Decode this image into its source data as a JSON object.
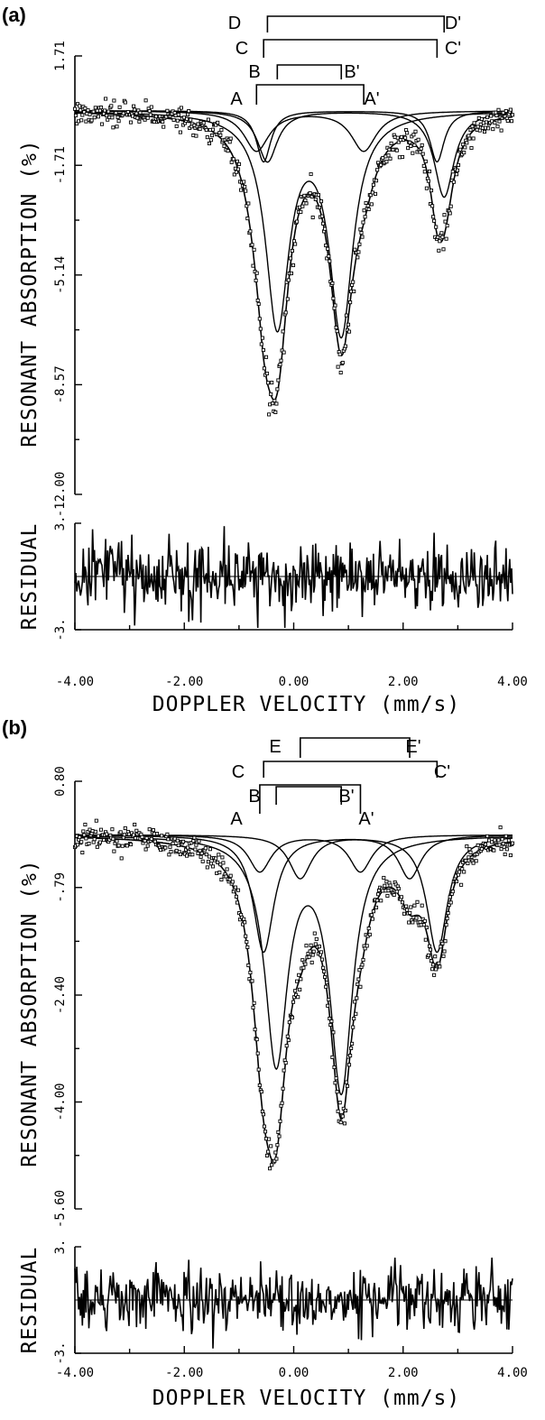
{
  "chart_data": [
    {
      "panel": "(a)",
      "type": "line",
      "xlabel": "DOPPLER VELOCITY (mm/s)",
      "ylabel": "RESONANT ABSORPTION (%)",
      "xlim": [
        -4.0,
        4.0
      ],
      "ylim": [
        -12.0,
        1.71
      ],
      "x_tick_labels": [
        "-4.00",
        "-2.00",
        "0.00",
        "2.00",
        "4.00"
      ],
      "y_tick_labels": [
        "1.71",
        "-1.71",
        "-5.14",
        "-8.57",
        "-12.00"
      ],
      "y_ticks": [
        1.71,
        -1.71,
        -5.14,
        -8.57,
        -12.0
      ],
      "baseline": 0,
      "components": [
        {
          "name": "A",
          "line1": -0.68,
          "line2": 1.28,
          "depths": [
            1.25,
            1.25
          ],
          "width": 0.28
        },
        {
          "name": "B",
          "line1": -0.3,
          "line2": 0.87,
          "depths": [
            6.6,
            6.8
          ],
          "width": 0.26
        },
        {
          "name": "C",
          "line1": -0.55,
          "line2": 2.62,
          "depths": [
            1.6,
            1.6
          ],
          "width": 0.16
        },
        {
          "name": "D",
          "line1": -0.48,
          "line2": 2.75,
          "depths": [
            1.6,
            2.7
          ],
          "width": 0.22
        }
      ],
      "doublet_labels": [
        {
          "left": "A",
          "right": "A'"
        },
        {
          "left": "B",
          "right": "B'"
        },
        {
          "left": "C",
          "right": "C'"
        },
        {
          "left": "D",
          "right": "D'"
        }
      ],
      "residual": {
        "ylabel": "RESIDUAL",
        "ylim": [
          -3.0,
          3.0
        ],
        "y_tick_labels": [
          "3.",
          "-3."
        ]
      }
    },
    {
      "panel": "(b)",
      "type": "line",
      "xlabel": "DOPPLER VELOCITY (mm/s)",
      "ylabel": "RESONANT ABSORPTION (%)",
      "xlim": [
        -4.0,
        4.0
      ],
      "ylim": [
        -5.6,
        0.8
      ],
      "x_tick_labels": [
        "-4.00",
        "-2.00",
        "0.00",
        "2.00",
        "4.00"
      ],
      "y_tick_labels": [
        "0.80",
        "-.79",
        "-2.40",
        "-4.00",
        "-5.60"
      ],
      "y_ticks": [
        0.8,
        -0.79,
        -2.4,
        -4.0,
        -5.6
      ],
      "baseline": 0,
      "components": [
        {
          "name": "A",
          "line1": -0.62,
          "line2": 1.22,
          "depths": [
            0.55,
            0.55
          ],
          "width": 0.25
        },
        {
          "name": "B",
          "line1": -0.32,
          "line2": 0.87,
          "depths": [
            3.35,
            3.75
          ],
          "width": 0.25
        },
        {
          "name": "C",
          "line1": -0.55,
          "line2": 2.62,
          "depths": [
            1.75,
            1.75
          ],
          "width": 0.23
        },
        {
          "name": "E",
          "line1": 0.12,
          "line2": 2.12,
          "depths": [
            0.65,
            0.65
          ],
          "width": 0.25
        }
      ],
      "doublet_labels": [
        {
          "left": "A",
          "right": "A'"
        },
        {
          "left": "B",
          "right": "B'"
        },
        {
          "left": "C",
          "right": "C'"
        },
        {
          "left": "E",
          "right": "E'"
        }
      ],
      "residual": {
        "ylabel": "RESIDUAL",
        "ylim": [
          -3.0,
          3.0
        ],
        "y_tick_labels": [
          "3.",
          "-3."
        ]
      }
    }
  ]
}
